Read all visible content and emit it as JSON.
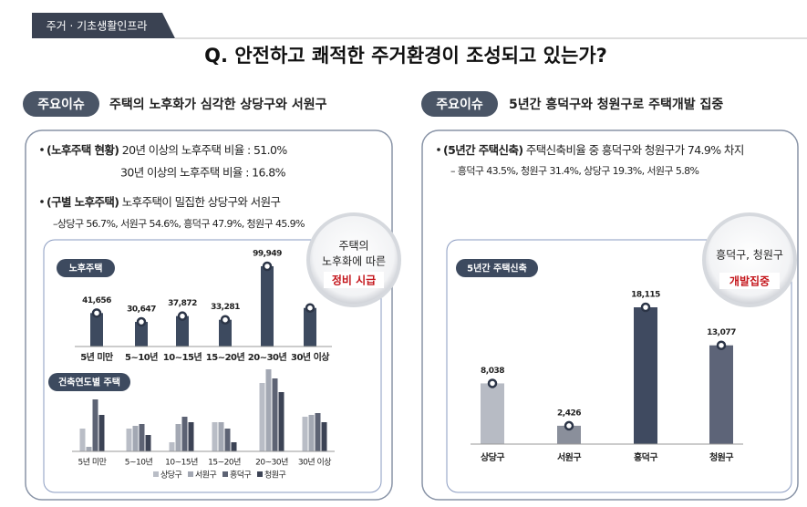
{
  "header": {
    "tag": "주거 · 기초생활인프라",
    "question": "Q. 안전하고 쾌적한 주거환경이 조성되고 있는가?"
  },
  "left": {
    "badge": "주요이슈",
    "heading": "주택의 노후화가 심각한 상당구와 서원구",
    "bullets": [
      {
        "label": "(노후주택 현황)",
        "text": " 20년 이상의 노후주택 비율 : 51.0%"
      },
      {
        "text": "30년 이상의 노후주택 비율 : 16.8%"
      },
      {
        "label": "(구별 노후주택)",
        "text": " 노후주택이 밀집한 상당구와 서원구"
      },
      {
        "text": "–상당구 56.7%,  서원구 54.6%, 흥덕구 47.9%, 청원구 45.9%"
      }
    ],
    "callout": [
      "주택의",
      "노후화에 따른",
      "정비 시급"
    ]
  },
  "right": {
    "badge": "주요이슈",
    "heading": "5년간 흥덕구와 청원구로 주택개발 집중",
    "bullets": [
      {
        "label": "(5년간 주택신축)",
        "text": " 주택신축비율 중 흥덕구와 청원구가 74.9% 차지"
      },
      {
        "text": "– 흥덕구 43.5%, 청원구 31.4%, 상당구 19.3%, 서원구 5.8%"
      }
    ],
    "callout": [
      "흥덕구, 청원구",
      "개발집중"
    ]
  },
  "chart_data": [
    {
      "type": "bar",
      "title": "노후주택",
      "categories": [
        "5년 미만",
        "5~10년",
        "10~15년",
        "15~20년",
        "20~30년",
        "30년 이상"
      ],
      "values": [
        41656,
        30647,
        37872,
        33281,
        99949,
        48000
      ],
      "value_labels": [
        "41,656",
        "30,647",
        "37,872",
        "33,281",
        "99,949",
        null
      ],
      "color": "#3d4a5f"
    },
    {
      "type": "grouped_bar",
      "title": "건축연도별 주택",
      "categories": [
        "5년 미만",
        "5~10년",
        "10~15년",
        "15~20년",
        "20~30년",
        "30년 이상"
      ],
      "series": [
        {
          "name": "상당구",
          "color": "#b9bdc6",
          "values": [
            25,
            25,
            10,
            32,
            75,
            38
          ]
        },
        {
          "name": "서원구",
          "color": "#a3a8b3",
          "values": [
            5,
            28,
            30,
            32,
            90,
            40
          ]
        },
        {
          "name": "흥덕구",
          "color": "#5d6374",
          "values": [
            57,
            30,
            38,
            25,
            80,
            42
          ]
        },
        {
          "name": "청원구",
          "color": "#3c4355",
          "values": [
            40,
            18,
            32,
            10,
            65,
            32
          ]
        }
      ]
    },
    {
      "type": "bar",
      "title": "5년간 주택신축",
      "categories": [
        "상당구",
        "서원구",
        "흥덕구",
        "청원구"
      ],
      "values": [
        8038,
        2426,
        18115,
        13077
      ],
      "value_labels": [
        "8,038",
        "2,426",
        "18,115",
        "13,077"
      ],
      "colors": [
        "#b7bbc4",
        "#8a8f9b",
        "#3f4a60",
        "#5d6478"
      ]
    }
  ]
}
